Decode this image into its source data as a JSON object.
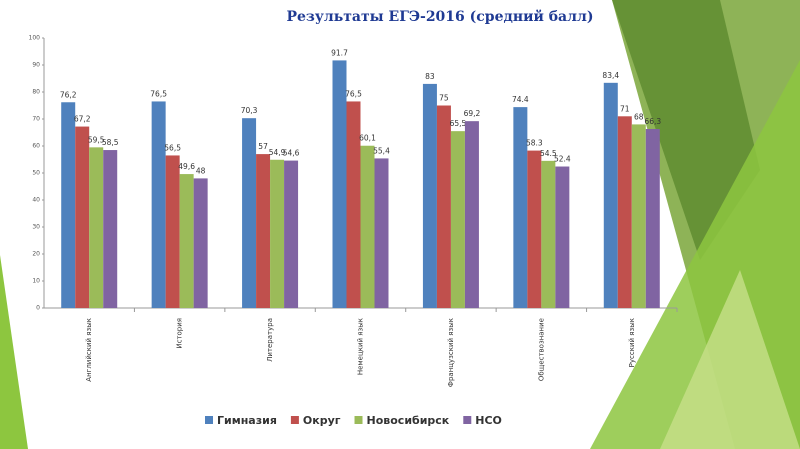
{
  "chart_data": {
    "type": "bar",
    "title": "Результаты ЕГЭ-2016 (средний балл)",
    "categories": [
      "Английский язык",
      "История",
      "Литература",
      "Немецкий язык",
      "Французский язык",
      "Обществознание",
      "Русский язык"
    ],
    "series": [
      {
        "name": "Гимназия",
        "color": "#4f81bd",
        "values": [
          76.2,
          76.5,
          70.3,
          91.7,
          83,
          74.4,
          83.4
        ],
        "value_labels": [
          "76,2",
          "76,5",
          "70,3",
          "91.7",
          "83",
          "74.4",
          "83,4"
        ]
      },
      {
        "name": "Округ",
        "color": "#c0504d",
        "values": [
          67.2,
          56.5,
          57,
          76.5,
          75,
          58.3,
          71
        ],
        "value_labels": [
          "67,2",
          "56,5",
          "57",
          "76,5",
          "75",
          "58.3",
          "71"
        ]
      },
      {
        "name": "Новосибирск",
        "color": "#9bbb59",
        "values": [
          59.5,
          49.6,
          54.9,
          60.1,
          65.5,
          54.5,
          68
        ],
        "value_labels": [
          "59,5",
          "49,6",
          "54,9",
          "60,1",
          "65,5",
          "54.5",
          "68"
        ]
      },
      {
        "name": "НСО",
        "color": "#8064a2",
        "values": [
          58.5,
          48,
          54.6,
          55.4,
          69.2,
          52.4,
          66.3
        ],
        "value_labels": [
          "58,5",
          "48",
          "54,6",
          "55,4",
          "69,2",
          "52.4",
          "66,3"
        ]
      }
    ],
    "ylim": [
      0,
      100
    ],
    "yticks": [
      0,
      10,
      20,
      30,
      40,
      50,
      60,
      70,
      80,
      90,
      100
    ],
    "legend": "bottom"
  }
}
